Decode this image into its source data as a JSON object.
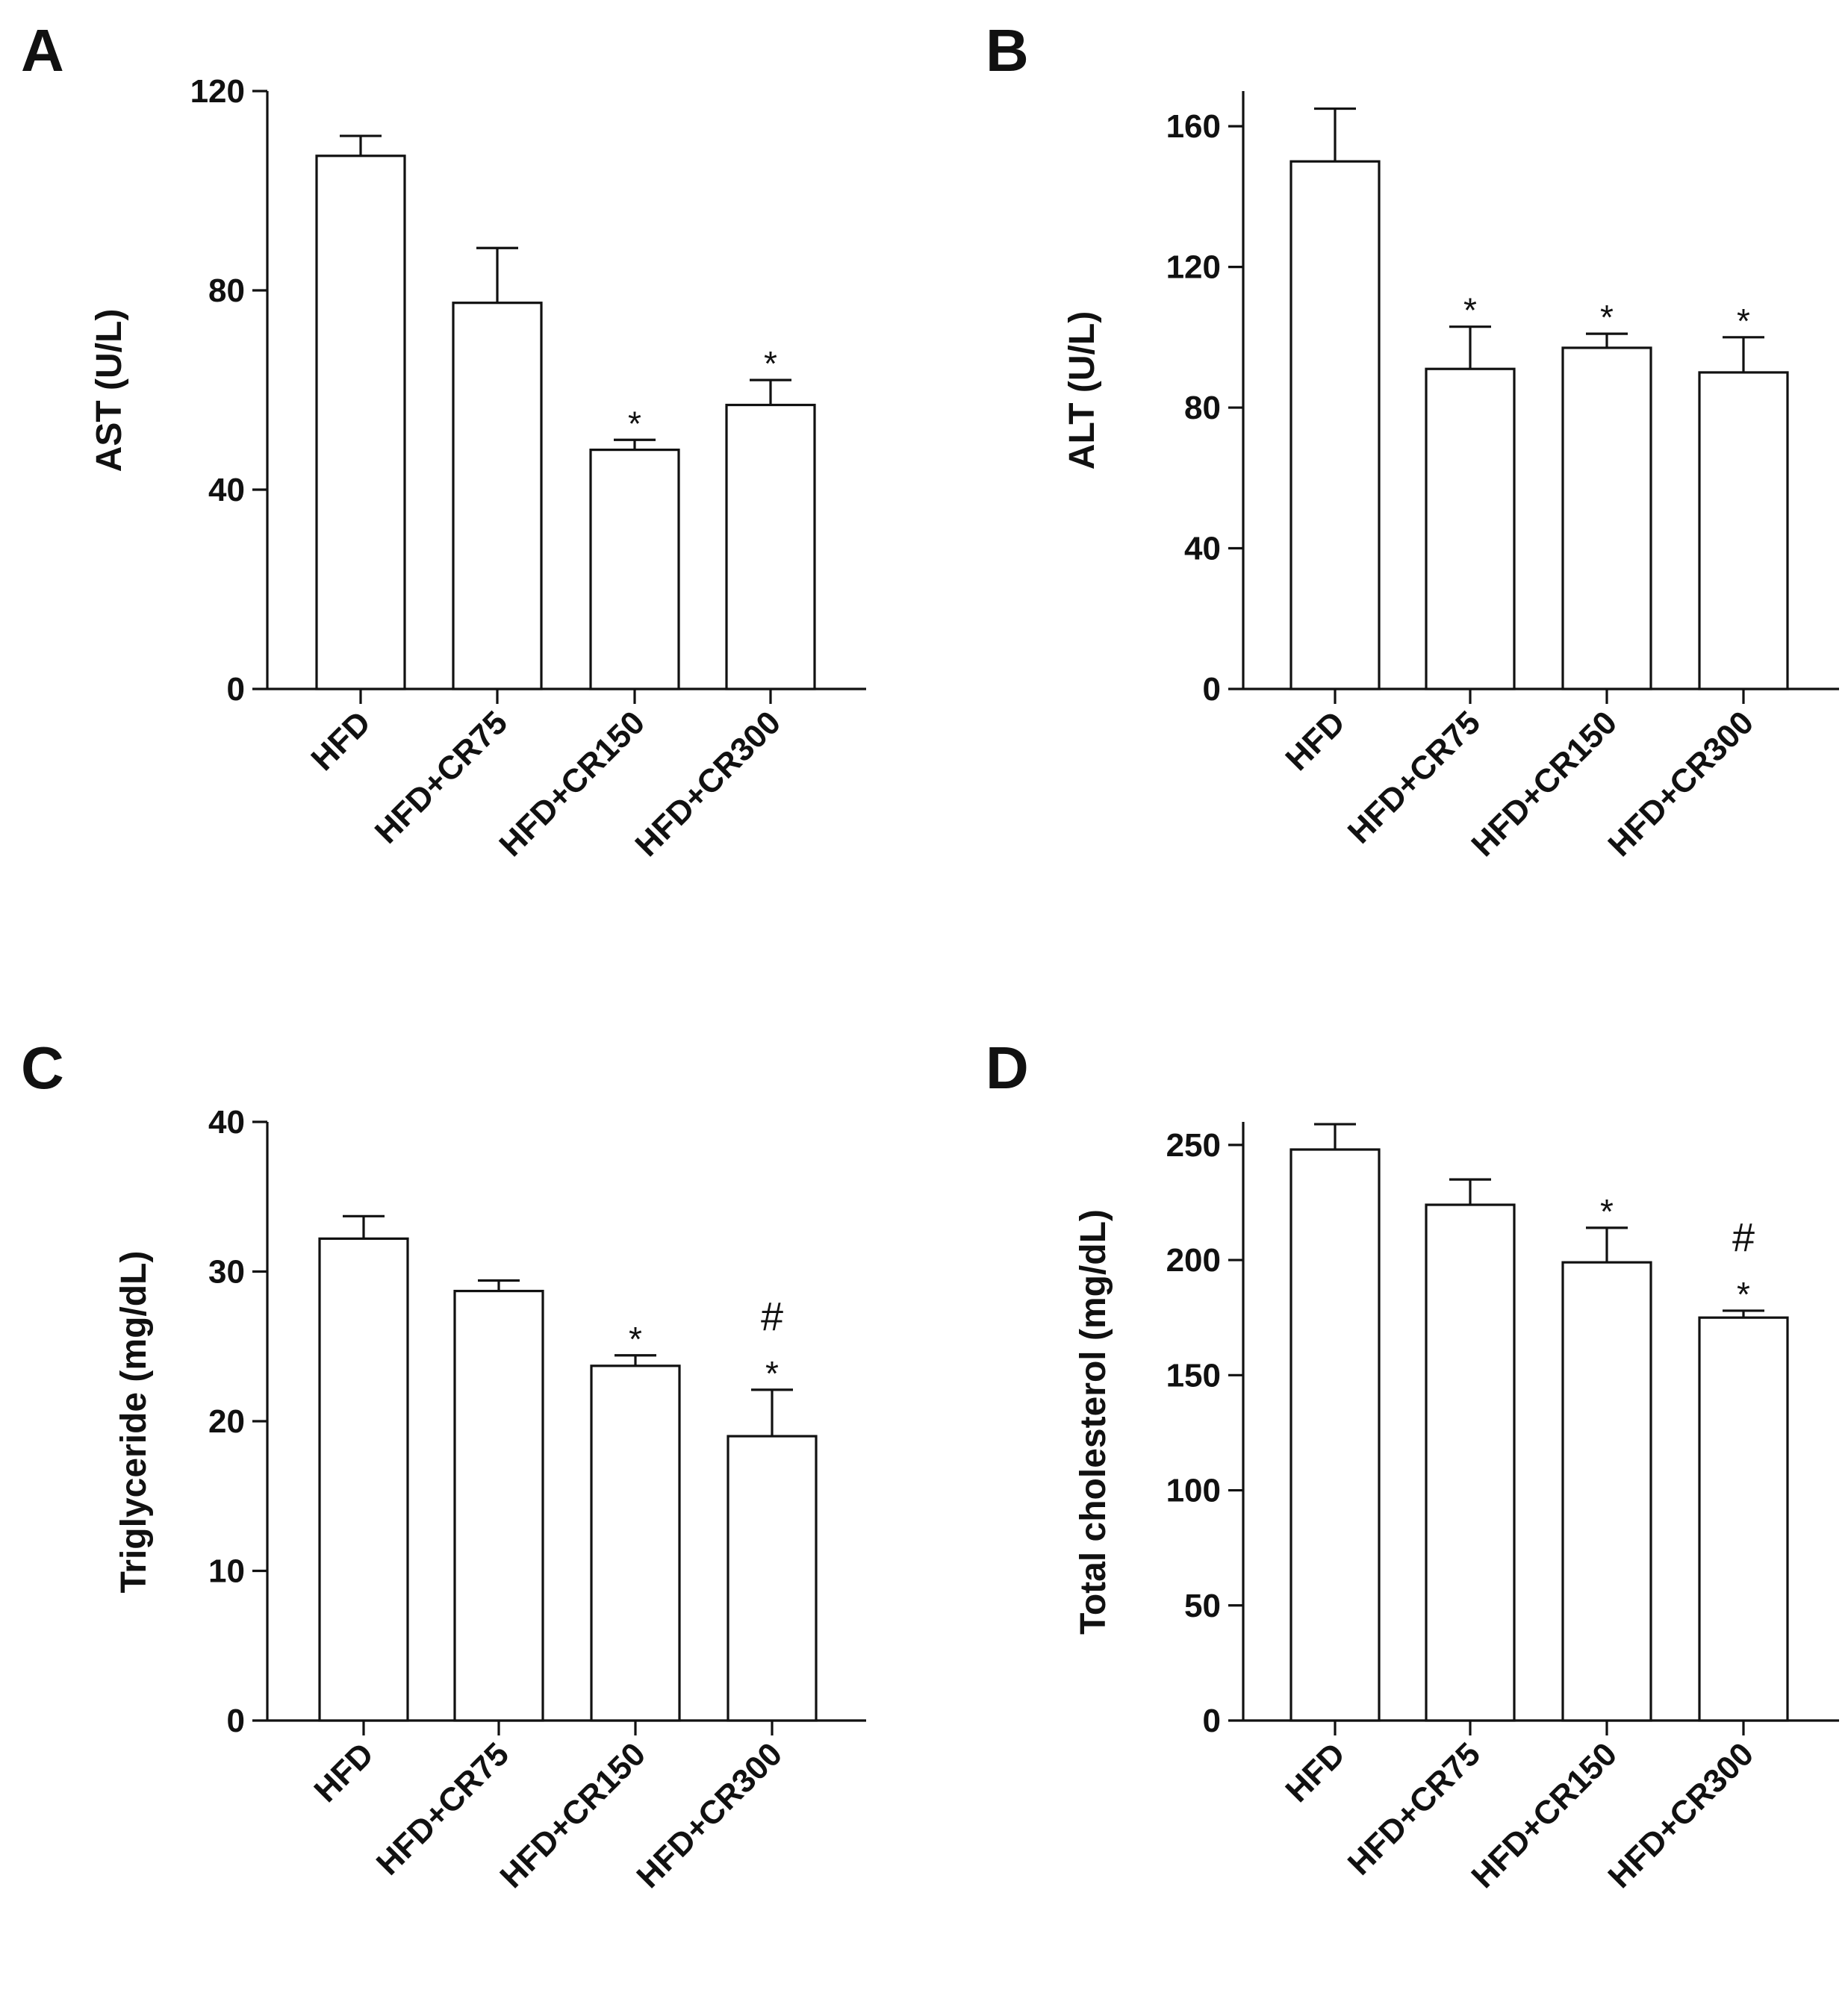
{
  "figure": {
    "background": "#ffffff",
    "ink_color": "#111111",
    "bar_fill": "#ffffff"
  },
  "chart_data": [
    {
      "panel": "A",
      "type": "bar",
      "categories": [
        "HFD",
        "HFD+CR75",
        "HFD+CR150",
        "HFD+CR300"
      ],
      "values": [
        107,
        77.5,
        48,
        57
      ],
      "errors": [
        4,
        11,
        2,
        5
      ],
      "significance": [
        "",
        "",
        "*",
        "*"
      ],
      "ylabel": "AST (U/L)",
      "xlabel": "",
      "ylim": [
        0,
        120
      ],
      "yticks": [
        0,
        40,
        80,
        120
      ]
    },
    {
      "panel": "B",
      "type": "bar",
      "categories": [
        "HFD",
        "HFD+CR75",
        "HFD+CR150",
        "HFD+CR300"
      ],
      "values": [
        150,
        91,
        97,
        90
      ],
      "errors": [
        15,
        12,
        4,
        10
      ],
      "significance": [
        "",
        "*",
        "*",
        "*"
      ],
      "ylabel": "ALT (U/L)",
      "xlabel": "",
      "ylim": [
        0,
        170
      ],
      "yticks": [
        0,
        40,
        80,
        120,
        160
      ]
    },
    {
      "panel": "C",
      "type": "bar",
      "categories": [
        "HFD",
        "HFD+CR75",
        "HFD+CR150",
        "HFD+CR300"
      ],
      "values": [
        32.2,
        28.7,
        23.7,
        19
      ],
      "errors": [
        1.5,
        0.7,
        0.7,
        3.1
      ],
      "significance": [
        "",
        "",
        "*",
        "#\n*"
      ],
      "ylabel": "Triglyceride (mg/dL)",
      "xlabel": "",
      "ylim": [
        0,
        40
      ],
      "yticks": [
        0,
        10,
        20,
        30,
        40
      ]
    },
    {
      "panel": "D",
      "type": "bar",
      "categories": [
        "HFD",
        "HFD+CR75",
        "HFD+CR150",
        "HFD+CR300"
      ],
      "values": [
        248,
        224,
        199,
        175
      ],
      "errors": [
        11,
        11,
        15,
        3
      ],
      "significance": [
        "",
        "",
        "*",
        "#\n*"
      ],
      "ylabel": "Total cholesterol (mg/dL)",
      "xlabel": "",
      "ylim": [
        0,
        260
      ],
      "yticks": [
        0,
        50,
        100,
        150,
        200,
        250
      ]
    }
  ]
}
